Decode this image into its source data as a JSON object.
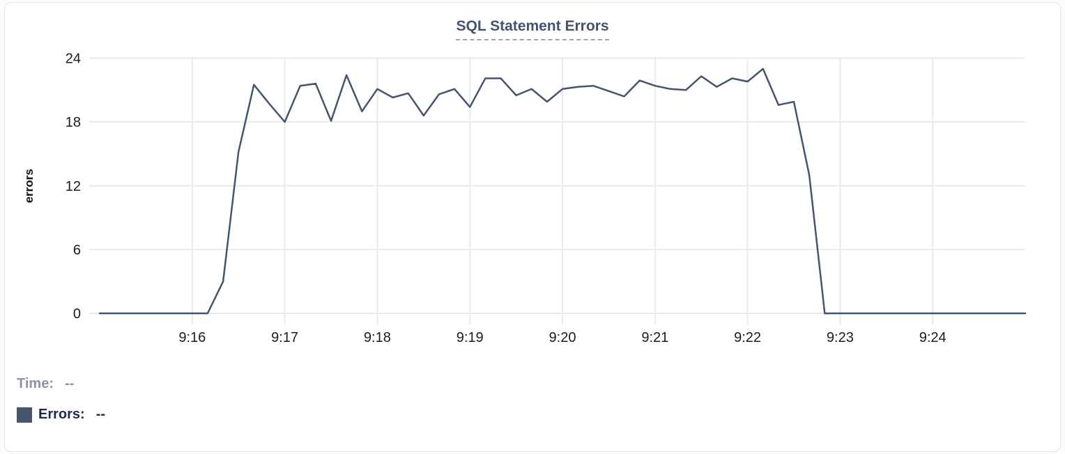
{
  "chart_data": {
    "type": "line",
    "title": "SQL Statement Errors",
    "ylabel": "errors",
    "xlabel": "",
    "ylim": [
      0,
      24
    ],
    "yticks": [
      0,
      6,
      12,
      18,
      24
    ],
    "xticks": [
      "9:16",
      "9:17",
      "9:18",
      "9:19",
      "9:20",
      "9:21",
      "9:22",
      "9:23",
      "9:24"
    ],
    "grid": true,
    "legend_position": "bottom-left",
    "line_color": "#44546F",
    "x_interval_seconds": 10,
    "series": [
      {
        "name": "Errors",
        "x": [
          "9:15:00",
          "9:15:10",
          "9:15:20",
          "9:15:30",
          "9:15:40",
          "9:15:50",
          "9:16:00",
          "9:16:10",
          "9:16:20",
          "9:16:30",
          "9:16:40",
          "9:16:50",
          "9:17:00",
          "9:17:10",
          "9:17:20",
          "9:17:30",
          "9:17:40",
          "9:17:50",
          "9:18:00",
          "9:18:10",
          "9:18:20",
          "9:18:30",
          "9:18:40",
          "9:18:50",
          "9:19:00",
          "9:19:10",
          "9:19:20",
          "9:19:30",
          "9:19:40",
          "9:19:50",
          "9:20:00",
          "9:20:10",
          "9:20:20",
          "9:20:30",
          "9:20:40",
          "9:20:50",
          "9:21:00",
          "9:21:10",
          "9:21:20",
          "9:21:30",
          "9:21:40",
          "9:21:50",
          "9:22:00",
          "9:22:10",
          "9:22:20",
          "9:22:30",
          "9:22:40",
          "9:22:50",
          "9:23:00",
          "9:23:10",
          "9:23:20",
          "9:23:30",
          "9:23:40",
          "9:23:50",
          "9:24:00",
          "9:24:10",
          "9:24:20",
          "9:24:30",
          "9:24:40",
          "9:24:50",
          "9:25:00"
        ],
        "values": [
          0,
          0,
          0,
          0,
          0,
          0,
          0,
          0,
          3,
          15.2,
          21.5,
          19.7,
          18,
          21.4,
          21.6,
          18.1,
          22.4,
          19,
          21.1,
          20.3,
          20.7,
          18.6,
          20.6,
          21.1,
          19.4,
          22.1,
          22.1,
          20.5,
          21.1,
          19.9,
          21.1,
          21.3,
          21.4,
          20.9,
          20.4,
          21.9,
          21.4,
          21.1,
          21,
          22.3,
          21.3,
          22.1,
          21.8,
          23,
          19.6,
          19.9,
          13,
          0,
          0,
          0,
          0,
          0,
          0,
          0,
          0,
          0,
          0,
          0,
          0,
          0,
          0
        ]
      }
    ]
  },
  "legend": {
    "time_label": "Time:",
    "time_value": "--",
    "errors_label": "Errors:",
    "errors_value": "--",
    "swatch_color": "#44546F"
  },
  "colors": {
    "line": "#44546F",
    "title": "#44546F",
    "grid": "#e9eaed",
    "tick_text": "#1c1c1e",
    "time_label": "#8a94a4",
    "errors_label": "#1d2b50",
    "card_border": "#e3e6ea"
  }
}
